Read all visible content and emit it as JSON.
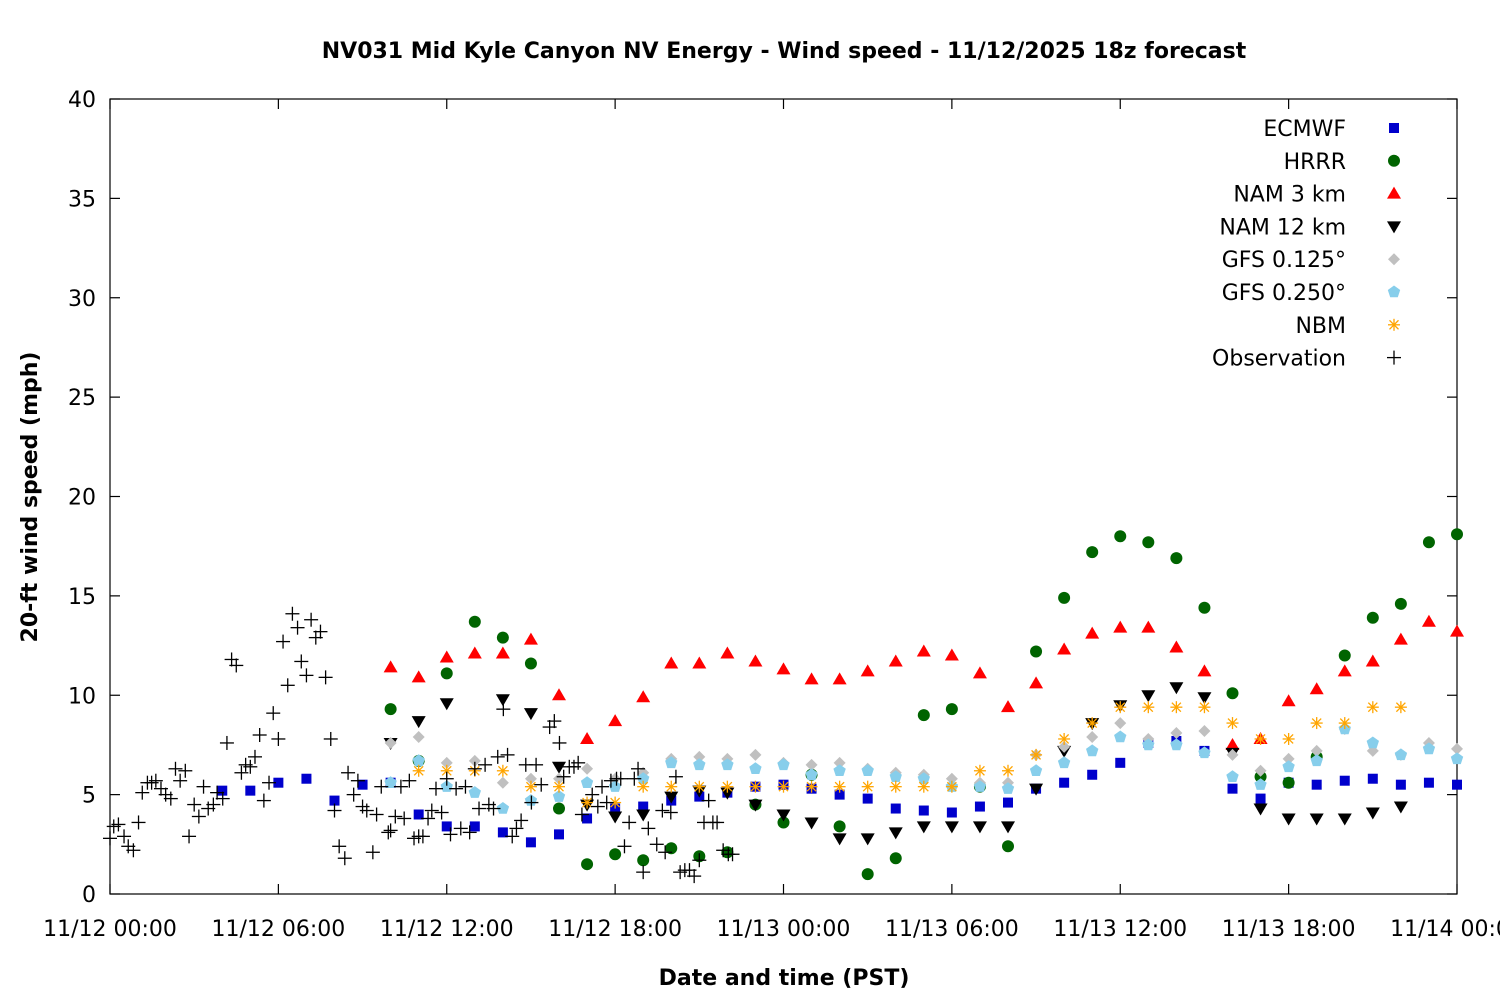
{
  "chart_data": {
    "type": "scatter",
    "title": "NV031 Mid Kyle Canyon NV Energy - Wind speed - 11/12/2025 18z forecast",
    "xlabel": "Date and time (PST)",
    "ylabel": "20-ft wind speed (mph)",
    "xlim": [
      "11/12 00:00",
      "11/14 00:00"
    ],
    "ylim": [
      0,
      40
    ],
    "x_ticks": [
      "11/12 00:00",
      "11/12 06:00",
      "11/12 12:00",
      "11/12 18:00",
      "11/13 00:00",
      "11/13 06:00",
      "11/13 12:00",
      "11/13 18:00",
      "11/14 00:00"
    ],
    "y_ticks": [
      "0",
      "5",
      "10",
      "15",
      "20",
      "25",
      "30",
      "35",
      "40"
    ],
    "grid": false,
    "legend_position": "top-right",
    "forecast_x": [
      "11/12 04:00",
      "11/12 05:00",
      "11/12 06:00",
      "11/12 07:00",
      "11/12 08:00",
      "11/12 09:00",
      "11/12 10:00",
      "11/12 11:00",
      "11/12 12:00",
      "11/12 13:00",
      "11/12 14:00",
      "11/12 15:00",
      "11/12 16:00",
      "11/12 17:00",
      "11/12 18:00",
      "11/12 19:00",
      "11/12 20:00",
      "11/12 21:00",
      "11/12 22:00",
      "11/12 23:00",
      "11/13 00:00",
      "11/13 01:00",
      "11/13 02:00",
      "11/13 03:00",
      "11/13 04:00",
      "11/13 05:00",
      "11/13 06:00",
      "11/13 07:00",
      "11/13 08:00",
      "11/13 09:00",
      "11/13 10:00",
      "11/13 11:00",
      "11/13 12:00",
      "11/13 13:00",
      "11/13 14:00",
      "11/13 15:00",
      "11/13 16:00",
      "11/13 17:00",
      "11/13 18:00",
      "11/13 19:00",
      "11/13 20:00",
      "11/13 21:00",
      "11/13 22:00",
      "11/13 23:00",
      "11/14 00:00"
    ],
    "series": [
      {
        "name": "ECMWF",
        "color": "#0000cc",
        "marker": "square",
        "values": [
          5.2,
          5.2,
          5.6,
          5.8,
          4.7,
          5.5,
          5.6,
          4.0,
          3.4,
          3.4,
          3.1,
          2.6,
          3.0,
          3.8,
          4.3,
          4.4,
          4.7,
          4.9,
          5.1,
          5.4,
          5.5,
          5.3,
          5.0,
          4.8,
          4.3,
          4.2,
          4.1,
          4.4,
          4.6,
          5.3,
          5.6,
          6.0,
          6.6,
          7.6,
          7.7,
          7.2,
          5.3,
          4.8,
          5.6,
          5.5,
          5.7,
          5.8,
          5.5,
          5.6,
          5.5
        ]
      },
      {
        "name": "HRRR",
        "color": "#006400",
        "marker": "circle",
        "values": [
          null,
          null,
          null,
          null,
          null,
          null,
          9.3,
          6.7,
          11.1,
          13.7,
          12.9,
          11.6,
          4.3,
          1.5,
          2.0,
          1.7,
          2.3,
          1.9,
          2.1,
          4.5,
          3.6,
          6.0,
          3.4,
          1.0,
          1.8,
          9.0,
          9.3,
          5.4,
          2.4,
          12.2,
          14.9,
          17.2,
          18.0,
          17.7,
          16.9,
          14.4,
          10.1,
          5.9,
          5.6,
          6.9,
          12.0,
          13.9,
          14.6,
          17.7,
          18.1
        ]
      },
      {
        "name": "NAM 3 km",
        "color": "#ff0000",
        "marker": "triangle-up",
        "values": [
          null,
          null,
          null,
          null,
          null,
          null,
          11.4,
          10.9,
          11.9,
          12.1,
          12.1,
          12.8,
          10.0,
          7.8,
          8.7,
          9.9,
          11.6,
          11.6,
          12.1,
          11.7,
          11.3,
          10.8,
          10.8,
          11.2,
          11.7,
          12.2,
          12.0,
          11.1,
          9.4,
          10.6,
          12.3,
          13.1,
          13.4,
          13.4,
          12.4,
          11.2,
          7.5,
          7.8,
          9.7,
          10.3,
          11.2,
          11.7,
          12.8,
          13.7,
          13.2
        ]
      },
      {
        "name": "NAM 12 km",
        "color": "#000000",
        "marker": "triangle-down",
        "values": [
          null,
          null,
          null,
          null,
          null,
          null,
          7.6,
          8.7,
          9.6,
          null,
          9.8,
          9.1,
          6.4,
          4.5,
          3.9,
          4.0,
          4.9,
          5.2,
          5.1,
          4.5,
          4.0,
          3.6,
          2.8,
          2.8,
          3.1,
          3.4,
          3.4,
          3.4,
          3.4,
          5.3,
          7.2,
          8.6,
          9.5,
          10.0,
          10.4,
          9.9,
          7.1,
          4.3,
          3.8,
          3.8,
          3.8,
          4.1,
          4.4,
          null,
          null
        ]
      },
      {
        "name": "GFS 0.125°",
        "color": "#c0c0c0",
        "marker": "diamond",
        "values": [
          null,
          null,
          null,
          null,
          null,
          null,
          7.6,
          7.9,
          6.6,
          6.7,
          5.6,
          5.8,
          5.8,
          6.3,
          5.8,
          6.1,
          6.8,
          6.9,
          6.8,
          7.0,
          6.6,
          6.5,
          6.6,
          6.3,
          6.1,
          6.0,
          5.8,
          5.6,
          5.6,
          7.0,
          7.4,
          7.9,
          8.6,
          7.8,
          8.1,
          8.2,
          7.0,
          6.2,
          6.8,
          7.2,
          8.3,
          7.2,
          7.0,
          7.6,
          7.3
        ]
      },
      {
        "name": "GFS 0.250°",
        "color": "#87ceeb",
        "marker": "pentagon",
        "values": [
          null,
          null,
          null,
          null,
          null,
          null,
          5.6,
          6.7,
          5.4,
          5.1,
          4.3,
          4.7,
          4.9,
          5.6,
          5.4,
          5.8,
          6.6,
          6.5,
          6.5,
          6.3,
          6.5,
          6.0,
          6.2,
          6.2,
          5.9,
          5.8,
          5.4,
          5.4,
          5.3,
          6.2,
          6.6,
          7.2,
          7.9,
          7.5,
          7.5,
          7.1,
          5.9,
          5.5,
          6.4,
          6.7,
          8.3,
          7.6,
          7.0,
          7.3,
          6.8
        ]
      },
      {
        "name": "NBM",
        "color": "#ffa500",
        "marker": "asterisk",
        "values": [
          null,
          null,
          null,
          null,
          null,
          null,
          null,
          6.2,
          6.2,
          6.2,
          6.2,
          5.4,
          5.4,
          4.6,
          4.6,
          5.4,
          5.4,
          5.4,
          5.4,
          5.4,
          5.4,
          5.4,
          5.4,
          5.4,
          5.4,
          5.4,
          5.4,
          6.2,
          6.2,
          7.0,
          7.8,
          8.6,
          9.4,
          9.4,
          9.4,
          9.4,
          8.6,
          7.8,
          7.8,
          8.6,
          8.6,
          9.4,
          9.4,
          null,
          null
        ]
      }
    ],
    "observation": {
      "name": "Observation",
      "color": "#000000",
      "marker": "plus",
      "points": [
        [
          "11/12 00:00",
          2.8
        ],
        [
          "11/12 00:08",
          3.4
        ],
        [
          "11/12 00:18",
          3.5
        ],
        [
          "11/12 00:30",
          2.9
        ],
        [
          "11/12 00:39",
          2.4
        ],
        [
          "11/12 00:50",
          2.2
        ],
        [
          "11/12 01:01",
          3.6
        ],
        [
          "11/12 01:09",
          5.1
        ],
        [
          "11/12 01:20",
          5.6
        ],
        [
          "11/12 01:29",
          5.6
        ],
        [
          "11/12 01:38",
          5.7
        ],
        [
          "11/12 01:49",
          5.3
        ],
        [
          "11/12 01:59",
          5.0
        ],
        [
          "11/12 02:10",
          4.8
        ],
        [
          "11/12 02:20",
          6.3
        ],
        [
          "11/12 02:30",
          5.7
        ],
        [
          "11/12 02:41",
          6.2
        ],
        [
          "11/12 02:49",
          2.9
        ],
        [
          "11/12 03:00",
          4.5
        ],
        [
          "11/12 03:10",
          3.9
        ],
        [
          "11/12 03:20",
          5.4
        ],
        [
          "11/12 03:30",
          4.3
        ],
        [
          "11/12 03:41",
          4.5
        ],
        [
          "11/12 03:49",
          5.1
        ],
        [
          "11/12 04:01",
          4.8
        ],
        [
          "11/12 04:10",
          7.6
        ],
        [
          "11/12 04:20",
          11.8
        ],
        [
          "11/12 04:30",
          11.5
        ],
        [
          "11/12 04:41",
          6.1
        ],
        [
          "11/12 04:50",
          6.5
        ],
        [
          "11/12 05:00",
          6.4
        ],
        [
          "11/12 05:10",
          6.9
        ],
        [
          "11/12 05:20",
          8.0
        ],
        [
          "11/12 05:29",
          4.7
        ],
        [
          "11/12 05:40",
          5.6
        ],
        [
          "11/12 05:49",
          9.1
        ],
        [
          "11/12 06:00",
          7.8
        ],
        [
          "11/12 06:10",
          12.7
        ],
        [
          "11/12 06:20",
          10.5
        ],
        [
          "11/12 06:30",
          14.1
        ],
        [
          "11/12 06:41",
          13.4
        ],
        [
          "11/12 06:49",
          11.7
        ],
        [
          "11/12 07:00",
          11.0
        ],
        [
          "11/12 07:10",
          13.8
        ],
        [
          "11/12 07:20",
          12.9
        ],
        [
          "11/12 07:30",
          13.2
        ],
        [
          "11/12 07:41",
          10.9
        ],
        [
          "11/12 07:52",
          7.8
        ],
        [
          "11/12 08:00",
          4.2
        ],
        [
          "11/12 08:10",
          2.4
        ],
        [
          "11/12 08:22",
          1.8
        ],
        [
          "11/12 08:29",
          6.1
        ],
        [
          "11/12 08:41",
          5.0
        ],
        [
          "11/12 08:50",
          5.7
        ],
        [
          "11/12 09:00",
          4.4
        ],
        [
          "11/12 09:09",
          4.2
        ],
        [
          "11/12 09:22",
          2.1
        ],
        [
          "11/12 09:30",
          4.0
        ],
        [
          "11/12 09:40",
          5.4
        ],
        [
          "11/12 09:55",
          3.1
        ],
        [
          "11/12 10:00",
          3.2
        ],
        [
          "11/12 10:10",
          3.9
        ],
        [
          "11/12 10:22",
          5.4
        ],
        [
          "11/12 10:29",
          3.8
        ],
        [
          "11/12 10:40",
          5.7
        ],
        [
          "11/12 10:50",
          2.8
        ],
        [
          "11/12 11:00",
          2.9
        ],
        [
          "11/12 11:09",
          2.9
        ],
        [
          "11/12 11:20",
          3.8
        ],
        [
          "11/12 11:28",
          4.2
        ],
        [
          "11/12 11:37",
          5.3
        ],
        [
          "11/12 11:49",
          4.1
        ],
        [
          "11/12 12:00",
          5.8
        ],
        [
          "11/12 12:08",
          3.0
        ],
        [
          "11/12 12:20",
          5.3
        ],
        [
          "11/12 12:30",
          3.3
        ],
        [
          "11/12 12:40",
          5.4
        ],
        [
          "11/12 12:49",
          3.1
        ],
        [
          "11/12 13:00",
          6.3
        ],
        [
          "11/12 13:09",
          4.3
        ],
        [
          "11/12 13:22",
          6.5
        ],
        [
          "11/12 13:30",
          4.5
        ],
        [
          "11/12 13:40",
          4.3
        ],
        [
          "11/12 13:49",
          6.9
        ],
        [
          "11/12 14:01",
          9.3
        ],
        [
          "11/12 14:10",
          7.0
        ],
        [
          "11/12 14:20",
          2.9
        ],
        [
          "11/12 14:29",
          3.3
        ],
        [
          "11/12 14:39",
          3.7
        ],
        [
          "11/12 14:49",
          6.5
        ],
        [
          "11/12 15:01",
          4.6
        ],
        [
          "11/12 15:11",
          6.5
        ],
        [
          "11/12 15:22",
          5.5
        ],
        [
          "11/12 15:40",
          8.4
        ],
        [
          "11/12 15:50",
          8.7
        ],
        [
          "11/12 16:01",
          7.6
        ],
        [
          "11/12 16:10",
          5.9
        ],
        [
          "11/12 16:22",
          6.4
        ],
        [
          "11/12 16:32",
          6.4
        ],
        [
          "11/12 16:41",
          6.6
        ],
        [
          "11/12 16:49",
          4.0
        ],
        [
          "11/12 17:11",
          5.0
        ],
        [
          "11/12 17:23",
          4.4
        ],
        [
          "11/12 17:32",
          5.4
        ],
        [
          "11/12 17:42",
          4.6
        ],
        [
          "11/12 17:51",
          5.7
        ],
        [
          "11/12 18:03",
          5.8
        ],
        [
          "11/12 18:12",
          5.8
        ],
        [
          "11/12 18:20",
          2.4
        ],
        [
          "11/12 18:30",
          3.6
        ],
        [
          "11/12 18:41",
          5.8
        ],
        [
          "11/12 18:49",
          6.3
        ],
        [
          "11/12 19:00",
          1.1
        ],
        [
          "11/12 19:11",
          3.3
        ],
        [
          "11/12 19:29",
          2.5
        ],
        [
          "11/12 19:41",
          4.2
        ],
        [
          "11/12 19:47",
          2.1
        ],
        [
          "11/12 19:59",
          4.1
        ],
        [
          "11/12 20:10",
          5.9
        ],
        [
          "11/12 20:19",
          1.1
        ],
        [
          "11/12 20:29",
          1.2
        ],
        [
          "11/12 20:39",
          1.2
        ],
        [
          "11/12 20:49",
          0.9
        ],
        [
          "11/12 21:00",
          1.7
        ],
        [
          "11/12 21:10",
          3.6
        ],
        [
          "11/12 21:20",
          4.7
        ],
        [
          "11/12 21:29",
          3.6
        ],
        [
          "11/12 21:38",
          3.6
        ],
        [
          "11/12 21:51",
          2.2
        ],
        [
          "11/12 22:02",
          2.0
        ],
        [
          "11/12 22:11",
          2.0
        ]
      ]
    }
  }
}
